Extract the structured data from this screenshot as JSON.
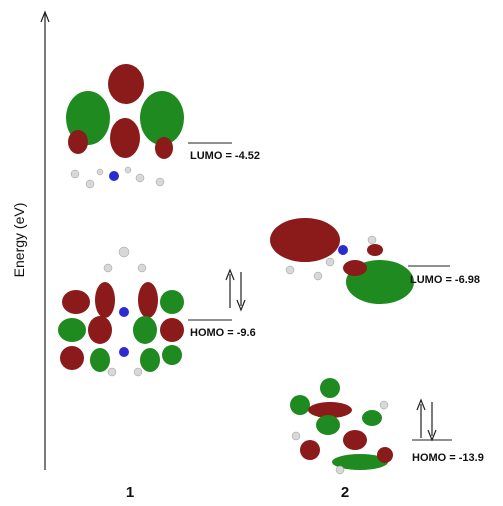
{
  "axis": {
    "label": "Energy (eV)"
  },
  "molecules": [
    {
      "label": "1",
      "levels": [
        {
          "text": "LUMO = -4.52"
        },
        {
          "text": "HOMO = -9.6"
        }
      ]
    },
    {
      "label": "2",
      "levels": [
        {
          "text": "LUMO = -6.98"
        },
        {
          "text": "HOMO = -13.9"
        }
      ]
    }
  ]
}
